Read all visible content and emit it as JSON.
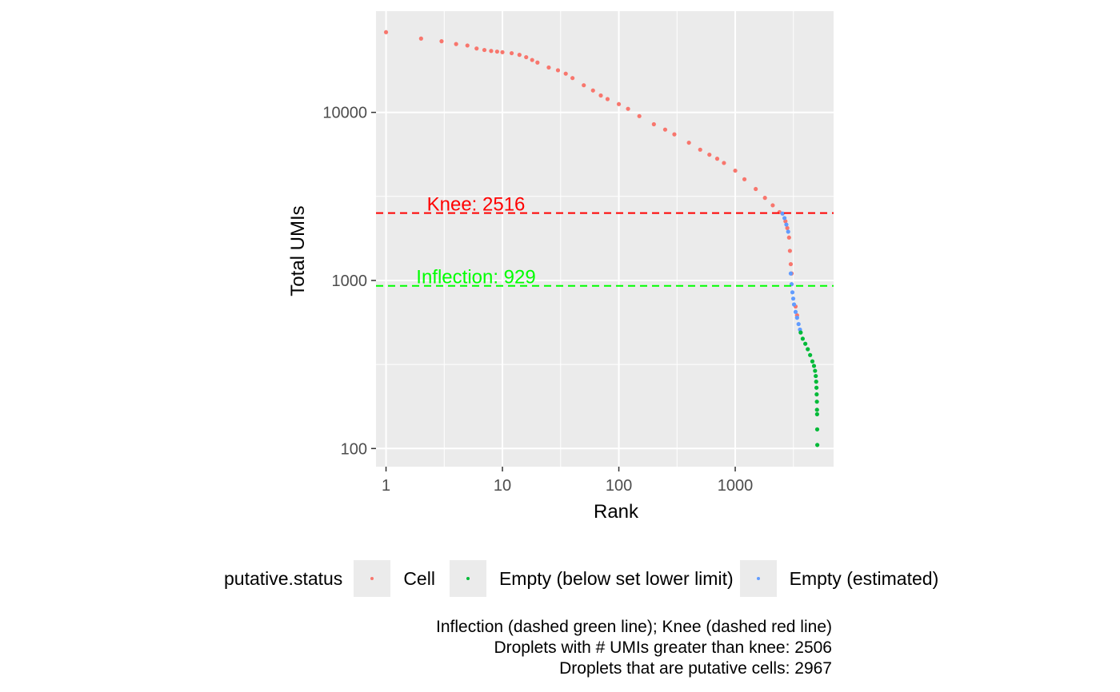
{
  "chart_data": {
    "type": "scatter",
    "xlabel": "Rank",
    "ylabel": "Total UMIs",
    "x_scale": "log10",
    "y_scale": "log10",
    "xlim": [
      0.82,
      7000
    ],
    "ylim": [
      78,
      40000
    ],
    "x_ticks": [
      1,
      10,
      100,
      1000
    ],
    "x_tick_labels": [
      "1",
      "10",
      "100",
      "1000"
    ],
    "y_ticks": [
      100,
      1000,
      10000
    ],
    "y_tick_labels": [
      "100",
      "1000",
      "10000"
    ],
    "grid": true,
    "legend": {
      "title": "putative.status",
      "position": "bottom",
      "entries": [
        {
          "name": "Cell",
          "color": "#F8766D"
        },
        {
          "name": "Empty (below set lower limit)",
          "color": "#00BA38"
        },
        {
          "name": "Empty (estimated)",
          "color": "#619CFF"
        }
      ]
    },
    "reference_lines": [
      {
        "label": "Knee: 2516",
        "value": 2516,
        "color": "#FF0000",
        "style": "dashed"
      },
      {
        "label": "Inflection: 929",
        "value": 929,
        "color": "#00FF00",
        "style": "dashed"
      }
    ],
    "series": [
      {
        "name": "Cell",
        "color": "#F8766D",
        "points": [
          [
            1,
            30000
          ],
          [
            2,
            27500
          ],
          [
            3,
            26500
          ],
          [
            4,
            25500
          ],
          [
            5,
            25000
          ],
          [
            6,
            24000
          ],
          [
            7,
            23500
          ],
          [
            8,
            23200
          ],
          [
            9,
            23000
          ],
          [
            10,
            22800
          ],
          [
            12,
            22500
          ],
          [
            14,
            22000
          ],
          [
            16,
            21300
          ],
          [
            18,
            20500
          ],
          [
            20,
            19800
          ],
          [
            25,
            18500
          ],
          [
            30,
            17800
          ],
          [
            35,
            17000
          ],
          [
            40,
            16000
          ],
          [
            50,
            14500
          ],
          [
            60,
            13500
          ],
          [
            70,
            12600
          ],
          [
            80,
            12000
          ],
          [
            100,
            11200
          ],
          [
            120,
            10500
          ],
          [
            150,
            9500
          ],
          [
            200,
            8500
          ],
          [
            250,
            7900
          ],
          [
            300,
            7400
          ],
          [
            400,
            6600
          ],
          [
            500,
            6000
          ],
          [
            600,
            5600
          ],
          [
            700,
            5300
          ],
          [
            800,
            5000
          ],
          [
            1000,
            4500
          ],
          [
            1200,
            4000
          ],
          [
            1500,
            3500
          ],
          [
            1800,
            3100
          ],
          [
            2100,
            2800
          ],
          [
            2400,
            2550
          ],
          [
            2700,
            2250
          ],
          [
            2800,
            2050
          ],
          [
            2900,
            1800
          ],
          [
            2950,
            1500
          ],
          [
            3000,
            1250
          ],
          [
            3050,
            1100
          ],
          [
            3300,
            700
          ],
          [
            3400,
            620
          ]
        ]
      },
      {
        "name": "Empty (estimated)",
        "color": "#619CFF",
        "points": [
          [
            2550,
            2500
          ],
          [
            2650,
            2350
          ],
          [
            2750,
            2150
          ],
          [
            2850,
            1950
          ],
          [
            3000,
            1100
          ],
          [
            3050,
            950
          ],
          [
            3100,
            850
          ],
          [
            3150,
            780
          ],
          [
            3200,
            720
          ],
          [
            3300,
            650
          ],
          [
            3400,
            600
          ],
          [
            3500,
            550
          ],
          [
            3600,
            510
          ]
        ]
      },
      {
        "name": "Empty (below set lower limit)",
        "color": "#00BA38",
        "points": [
          [
            3650,
            490
          ],
          [
            3800,
            450
          ],
          [
            4000,
            420
          ],
          [
            4200,
            390
          ],
          [
            4400,
            360
          ],
          [
            4600,
            330
          ],
          [
            4750,
            310
          ],
          [
            4850,
            290
          ],
          [
            4920,
            270
          ],
          [
            4960,
            250
          ],
          [
            4990,
            230
          ],
          [
            5010,
            210
          ],
          [
            5030,
            190
          ],
          [
            5040,
            170
          ],
          [
            5050,
            160
          ],
          [
            5060,
            130
          ],
          [
            5070,
            105
          ]
        ]
      }
    ]
  },
  "caption": {
    "line1": "Inflection (dashed green line); Knee (dashed red line)",
    "line2": "Droplets with # UMIs greater than knee: 2506",
    "line3": "Droplets that are putative cells: 2967"
  }
}
